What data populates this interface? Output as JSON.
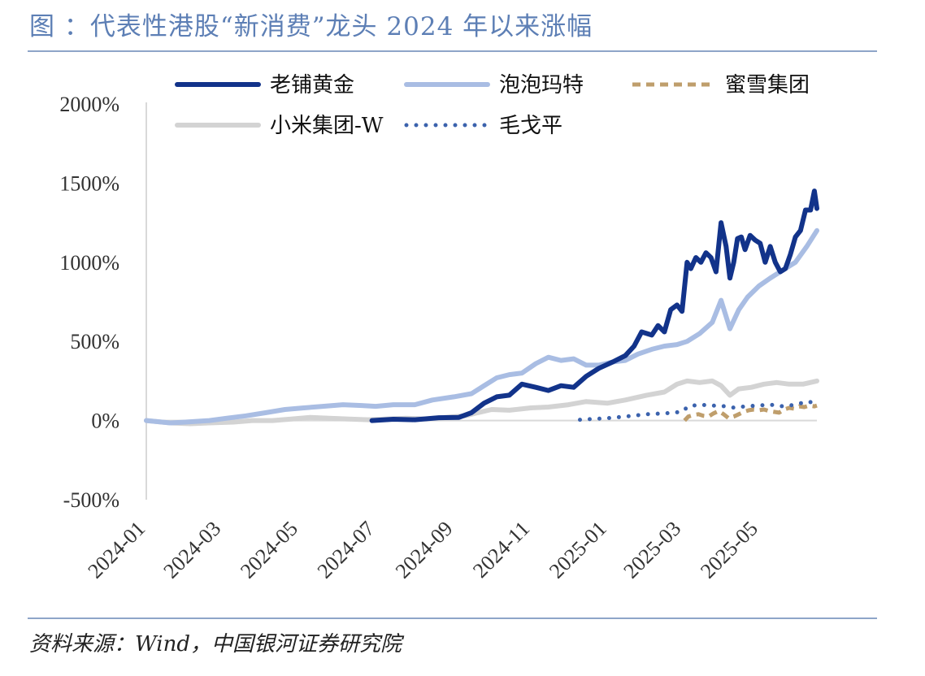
{
  "figure": {
    "title": "图 ：代表性港股“新消费”龙头 2024 年以来涨幅",
    "source": "资料来源：Wind，中国银河证券研究院"
  },
  "chart_data": {
    "type": "line",
    "title": "",
    "xlabel": "",
    "ylabel": "",
    "y_unit": "%",
    "ylim": [
      -500,
      2000
    ],
    "y_ticks": [
      2000,
      1500,
      1000,
      500,
      0,
      -500
    ],
    "y_tick_labels": [
      "2000%",
      "1500%",
      "1000%",
      "500%",
      "0%",
      "-500%"
    ],
    "x_range": [
      "2024-01-01",
      "2025-06-16"
    ],
    "x_ticks": [
      "2024-01",
      "2024-03",
      "2024-05",
      "2024-07",
      "2024-09",
      "2024-11",
      "2025-01",
      "2025-03",
      "2025-05"
    ],
    "grid": false,
    "legend_position": "top",
    "series": [
      {
        "name": "老铺黄金",
        "color": "#12338a",
        "style": "solid-thick",
        "points": [
          [
            "2024-06-28",
            0
          ],
          [
            "2024-07-15",
            8
          ],
          [
            "2024-08-01",
            5
          ],
          [
            "2024-08-20",
            18
          ],
          [
            "2024-09-05",
            20
          ],
          [
            "2024-09-15",
            50
          ],
          [
            "2024-09-25",
            110
          ],
          [
            "2024-10-05",
            150
          ],
          [
            "2024-10-15",
            160
          ],
          [
            "2024-10-25",
            230
          ],
          [
            "2024-11-05",
            210
          ],
          [
            "2024-11-15",
            190
          ],
          [
            "2024-11-25",
            220
          ],
          [
            "2024-12-05",
            210
          ],
          [
            "2024-12-15",
            280
          ],
          [
            "2024-12-25",
            330
          ],
          [
            "2025-01-05",
            370
          ],
          [
            "2025-01-15",
            410
          ],
          [
            "2025-01-22",
            470
          ],
          [
            "2025-01-28",
            560
          ],
          [
            "2025-02-05",
            540
          ],
          [
            "2025-02-10",
            600
          ],
          [
            "2025-02-15",
            560
          ],
          [
            "2025-02-20",
            700
          ],
          [
            "2025-02-25",
            730
          ],
          [
            "2025-03-01",
            690
          ],
          [
            "2025-03-05",
            1000
          ],
          [
            "2025-03-08",
            960
          ],
          [
            "2025-03-12",
            1030
          ],
          [
            "2025-03-16",
            1000
          ],
          [
            "2025-03-20",
            1060
          ],
          [
            "2025-03-24",
            1030
          ],
          [
            "2025-03-28",
            940
          ],
          [
            "2025-04-01",
            1250
          ],
          [
            "2025-04-05",
            1100
          ],
          [
            "2025-04-08",
            900
          ],
          [
            "2025-04-11",
            1000
          ],
          [
            "2025-04-14",
            1150
          ],
          [
            "2025-04-17",
            1160
          ],
          [
            "2025-04-20",
            1080
          ],
          [
            "2025-04-24",
            1170
          ],
          [
            "2025-04-28",
            1140
          ],
          [
            "2025-05-02",
            1120
          ],
          [
            "2025-05-06",
            1000
          ],
          [
            "2025-05-10",
            1100
          ],
          [
            "2025-05-14",
            1000
          ],
          [
            "2025-05-18",
            940
          ],
          [
            "2025-05-22",
            960
          ],
          [
            "2025-05-26",
            1050
          ],
          [
            "2025-05-30",
            1160
          ],
          [
            "2025-06-03",
            1200
          ],
          [
            "2025-06-07",
            1330
          ],
          [
            "2025-06-11",
            1330
          ],
          [
            "2025-06-14",
            1450
          ],
          [
            "2025-06-16",
            1340
          ]
        ]
      },
      {
        "name": "泡泡玛特",
        "color": "#a9bde3",
        "style": "solid-thick",
        "points": [
          [
            "2024-01-01",
            0
          ],
          [
            "2024-01-20",
            -15
          ],
          [
            "2024-02-01",
            -10
          ],
          [
            "2024-02-20",
            0
          ],
          [
            "2024-03-05",
            15
          ],
          [
            "2024-03-20",
            30
          ],
          [
            "2024-04-05",
            50
          ],
          [
            "2024-04-20",
            70
          ],
          [
            "2024-05-05",
            80
          ],
          [
            "2024-05-20",
            90
          ],
          [
            "2024-06-05",
            100
          ],
          [
            "2024-06-20",
            95
          ],
          [
            "2024-07-01",
            90
          ],
          [
            "2024-07-15",
            100
          ],
          [
            "2024-08-01",
            100
          ],
          [
            "2024-08-15",
            130
          ],
          [
            "2024-09-01",
            150
          ],
          [
            "2024-09-15",
            170
          ],
          [
            "2024-09-25",
            220
          ],
          [
            "2024-10-05",
            270
          ],
          [
            "2024-10-15",
            290
          ],
          [
            "2024-10-25",
            300
          ],
          [
            "2024-11-05",
            360
          ],
          [
            "2024-11-15",
            400
          ],
          [
            "2024-11-25",
            380
          ],
          [
            "2024-12-05",
            390
          ],
          [
            "2024-12-15",
            350
          ],
          [
            "2024-12-25",
            350
          ],
          [
            "2025-01-05",
            370
          ],
          [
            "2025-01-15",
            380
          ],
          [
            "2025-01-25",
            420
          ],
          [
            "2025-02-05",
            450
          ],
          [
            "2025-02-15",
            470
          ],
          [
            "2025-02-25",
            480
          ],
          [
            "2025-03-05",
            500
          ],
          [
            "2025-03-15",
            550
          ],
          [
            "2025-03-25",
            620
          ],
          [
            "2025-04-01",
            760
          ],
          [
            "2025-04-08",
            580
          ],
          [
            "2025-04-15",
            700
          ],
          [
            "2025-04-22",
            780
          ],
          [
            "2025-05-01",
            850
          ],
          [
            "2025-05-10",
            900
          ],
          [
            "2025-05-20",
            950
          ],
          [
            "2025-05-30",
            1000
          ],
          [
            "2025-06-08",
            1100
          ],
          [
            "2025-06-16",
            1200
          ]
        ]
      },
      {
        "name": "蜜雪集团",
        "color": "#bf9e6c",
        "style": "dashed",
        "points": [
          [
            "2025-03-03",
            0
          ],
          [
            "2025-03-06",
            25
          ],
          [
            "2025-03-10",
            35
          ],
          [
            "2025-03-14",
            40
          ],
          [
            "2025-03-18",
            30
          ],
          [
            "2025-03-22",
            25
          ],
          [
            "2025-03-26",
            45
          ],
          [
            "2025-03-30",
            60
          ],
          [
            "2025-04-03",
            40
          ],
          [
            "2025-04-07",
            15
          ],
          [
            "2025-04-11",
            25
          ],
          [
            "2025-04-15",
            40
          ],
          [
            "2025-04-19",
            55
          ],
          [
            "2025-04-23",
            65
          ],
          [
            "2025-04-27",
            70
          ],
          [
            "2025-05-01",
            65
          ],
          [
            "2025-05-05",
            70
          ],
          [
            "2025-05-09",
            60
          ],
          [
            "2025-05-13",
            55
          ],
          [
            "2025-05-17",
            50
          ],
          [
            "2025-05-21",
            70
          ],
          [
            "2025-05-25",
            80
          ],
          [
            "2025-05-29",
            75
          ],
          [
            "2025-06-02",
            90
          ],
          [
            "2025-06-06",
            85
          ],
          [
            "2025-06-10",
            95
          ],
          [
            "2025-06-14",
            90
          ],
          [
            "2025-06-16",
            95
          ]
        ]
      },
      {
        "name": "小米集团-W",
        "color": "#d3d3d3",
        "style": "solid-thick",
        "points": [
          [
            "2024-01-01",
            0
          ],
          [
            "2024-01-20",
            -15
          ],
          [
            "2024-02-05",
            -20
          ],
          [
            "2024-02-20",
            -15
          ],
          [
            "2024-03-10",
            -10
          ],
          [
            "2024-03-25",
            0
          ],
          [
            "2024-04-10",
            0
          ],
          [
            "2024-04-25",
            10
          ],
          [
            "2024-05-10",
            20
          ],
          [
            "2024-05-25",
            15
          ],
          [
            "2024-06-10",
            10
          ],
          [
            "2024-06-25",
            5
          ],
          [
            "2024-07-10",
            10
          ],
          [
            "2024-07-25",
            15
          ],
          [
            "2024-08-10",
            10
          ],
          [
            "2024-08-25",
            20
          ],
          [
            "2024-09-10",
            30
          ],
          [
            "2024-09-20",
            50
          ],
          [
            "2024-10-01",
            70
          ],
          [
            "2024-10-15",
            65
          ],
          [
            "2024-11-01",
            80
          ],
          [
            "2024-11-15",
            85
          ],
          [
            "2024-12-01",
            100
          ],
          [
            "2024-12-15",
            120
          ],
          [
            "2025-01-01",
            110
          ],
          [
            "2025-01-15",
            130
          ],
          [
            "2025-02-01",
            160
          ],
          [
            "2025-02-15",
            180
          ],
          [
            "2025-02-25",
            230
          ],
          [
            "2025-03-05",
            250
          ],
          [
            "2025-03-15",
            240
          ],
          [
            "2025-03-25",
            250
          ],
          [
            "2025-04-01",
            220
          ],
          [
            "2025-04-08",
            160
          ],
          [
            "2025-04-15",
            200
          ],
          [
            "2025-04-25",
            210
          ],
          [
            "2025-05-05",
            230
          ],
          [
            "2025-05-15",
            240
          ],
          [
            "2025-05-25",
            230
          ],
          [
            "2025-06-05",
            230
          ],
          [
            "2025-06-16",
            250
          ]
        ]
      },
      {
        "name": "毛戈平",
        "color": "#3b62ad",
        "style": "dotted",
        "points": [
          [
            "2024-12-10",
            5
          ],
          [
            "2024-12-20",
            10
          ],
          [
            "2025-01-01",
            15
          ],
          [
            "2025-01-15",
            25
          ],
          [
            "2025-02-01",
            40
          ],
          [
            "2025-02-15",
            45
          ],
          [
            "2025-03-01",
            55
          ],
          [
            "2025-03-06",
            90
          ],
          [
            "2025-03-15",
            100
          ],
          [
            "2025-03-25",
            95
          ],
          [
            "2025-04-05",
            90
          ],
          [
            "2025-04-12",
            80
          ],
          [
            "2025-04-20",
            90
          ],
          [
            "2025-05-01",
            95
          ],
          [
            "2025-05-10",
            100
          ],
          [
            "2025-05-20",
            90
          ],
          [
            "2025-05-30",
            100
          ],
          [
            "2025-06-08",
            120
          ],
          [
            "2025-06-16",
            110
          ]
        ]
      }
    ]
  }
}
